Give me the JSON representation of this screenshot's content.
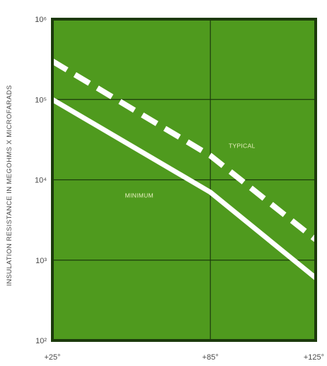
{
  "chart_data": {
    "type": "line",
    "title": "",
    "xlabel": "",
    "ylabel": "INSULATION RESISTANCE IN MEGOHMS X MICROFARADS",
    "y_scale": "log",
    "ylim": [
      100,
      1000000
    ],
    "xlim": [
      25,
      125
    ],
    "x_ticks": [
      {
        "value": 25,
        "label": "+25°"
      },
      {
        "value": 85,
        "label": "+85°"
      },
      {
        "value": 125,
        "label": "+125°"
      }
    ],
    "y_ticks": [
      {
        "value": 100,
        "label": "10²"
      },
      {
        "value": 1000,
        "label": "10³"
      },
      {
        "value": 10000,
        "label": "10⁴"
      },
      {
        "value": 100000,
        "label": "10⁵"
      },
      {
        "value": 1000000,
        "label": "10⁶"
      }
    ],
    "grid": true,
    "series": [
      {
        "name": "TYPICAL",
        "style": "dashed",
        "x": [
          25,
          85,
          125
        ],
        "y": [
          300000,
          20000,
          1800
        ]
      },
      {
        "name": "MINIMUM",
        "style": "solid",
        "x": [
          25,
          85,
          125
        ],
        "y": [
          100000,
          7000,
          600
        ]
      }
    ],
    "series_labels": [
      {
        "text": "TYPICAL",
        "x": 97,
        "y": 25000
      },
      {
        "text": "MINIMUM",
        "x": 58,
        "y": 6000
      }
    ],
    "colors": {
      "plot_background": "#4f9a1e",
      "grid": "#1c3a0c",
      "frame": "#1c3a0c",
      "line": "#ffffff",
      "tick_text": "#4a4a4a",
      "series_label_text": "#e9f0c0"
    }
  }
}
